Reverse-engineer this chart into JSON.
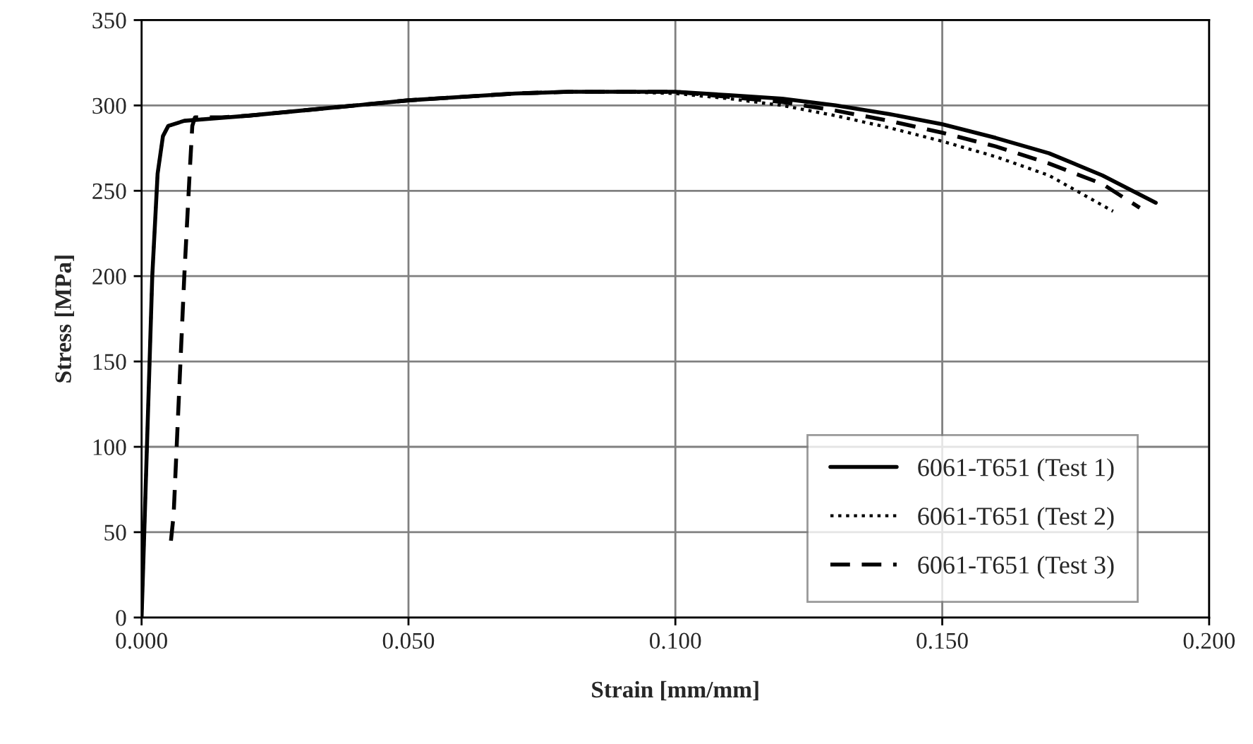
{
  "chart_data": {
    "type": "line",
    "xlabel": "Strain [mm/mm]",
    "ylabel": "Stress [MPa]",
    "xlim": [
      0,
      0.2
    ],
    "ylim": [
      0,
      350
    ],
    "xticks": [
      {
        "value": 0,
        "label": "0.000"
      },
      {
        "value": 0.05,
        "label": "0.050"
      },
      {
        "value": 0.1,
        "label": "0.100"
      },
      {
        "value": 0.15,
        "label": "0.150"
      },
      {
        "value": 0.2,
        "label": "0.200"
      }
    ],
    "yticks": [
      0,
      50,
      100,
      150,
      200,
      250,
      300,
      350
    ],
    "grid": true,
    "legend": "bottom right",
    "series": [
      {
        "name": "6061-T651 (Test 1)",
        "color": "#000000",
        "line_style": "solid",
        "x": [
          0,
          0.001,
          0.002,
          0.003,
          0.004,
          0.005,
          0.008,
          0.012,
          0.02,
          0.03,
          0.04,
          0.05,
          0.06,
          0.07,
          0.08,
          0.09,
          0.1,
          0.11,
          0.12,
          0.13,
          0.14,
          0.15,
          0.16,
          0.17,
          0.18,
          0.19
        ],
        "values": [
          0,
          100,
          200,
          260,
          282,
          288,
          291,
          292,
          294,
          297,
          300,
          303,
          305,
          307,
          308,
          308,
          308,
          306,
          304,
          300,
          295,
          289,
          281,
          272,
          259,
          243
        ]
      },
      {
        "name": "6061-T651 (Test 2)",
        "color": "#000000",
        "line_style": "dotted",
        "x": [
          0,
          0.001,
          0.002,
          0.003,
          0.004,
          0.005,
          0.008,
          0.012,
          0.02,
          0.03,
          0.04,
          0.05,
          0.06,
          0.07,
          0.08,
          0.09,
          0.1,
          0.11,
          0.12,
          0.13,
          0.14,
          0.15,
          0.16,
          0.17,
          0.182
        ],
        "values": [
          0,
          100,
          200,
          260,
          282,
          288,
          291,
          292,
          294,
          297,
          300,
          303,
          305,
          307,
          308,
          308,
          307,
          304,
          300,
          294,
          287,
          279,
          270,
          259,
          238
        ]
      },
      {
        "name": "6061-T651 (Test 3)",
        "color": "#000000",
        "line_style": "dashed",
        "x": [
          0.0055,
          0.006,
          0.007,
          0.008,
          0.009,
          0.0095,
          0.01,
          0.015,
          0.02,
          0.03,
          0.04,
          0.05,
          0.06,
          0.07,
          0.08,
          0.09,
          0.1,
          0.11,
          0.12,
          0.13,
          0.14,
          0.15,
          0.16,
          0.17,
          0.18,
          0.187
        ],
        "values": [
          45,
          60,
          130,
          200,
          260,
          288,
          293,
          293,
          294,
          297,
          300,
          303,
          305,
          307,
          308,
          308,
          308,
          305,
          302,
          297,
          291,
          284,
          276,
          266,
          254,
          240
        ]
      }
    ]
  }
}
